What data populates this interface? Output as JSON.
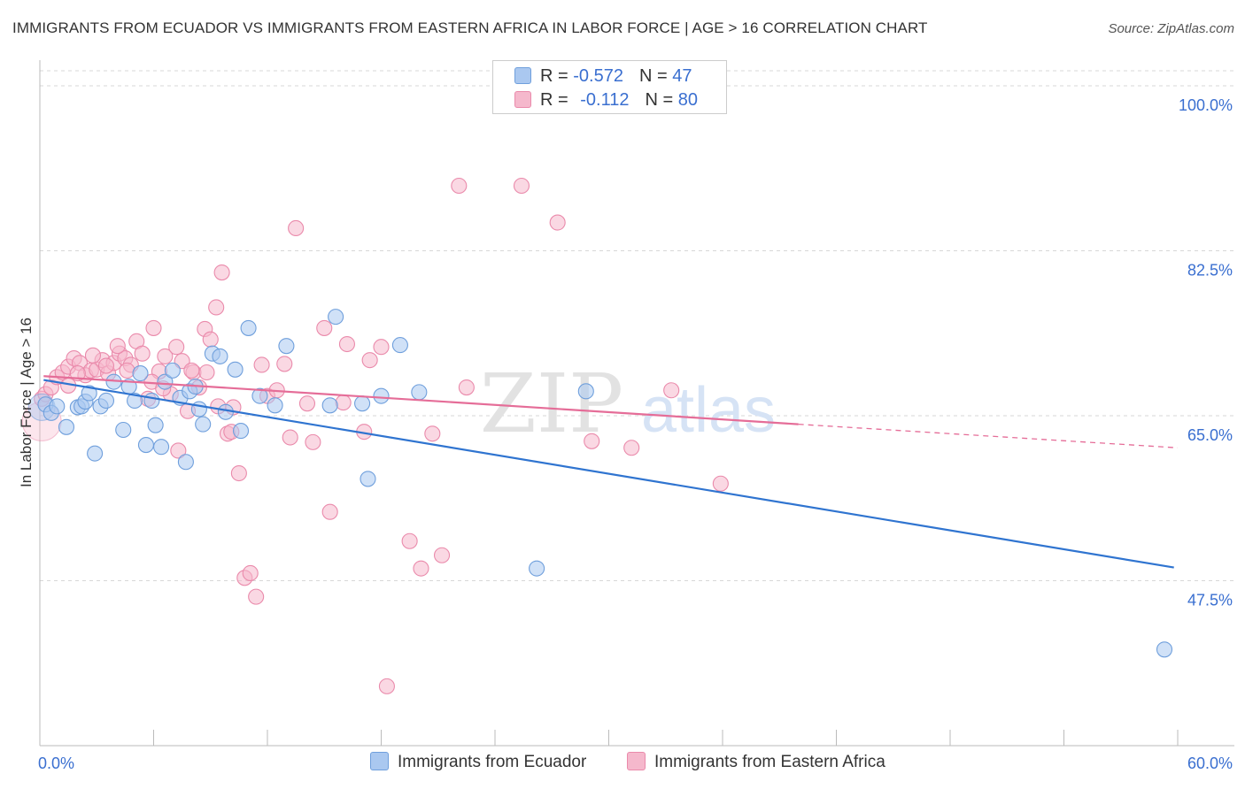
{
  "title": "IMMIGRANTS FROM ECUADOR VS IMMIGRANTS FROM EASTERN AFRICA IN LABOR FORCE | AGE > 16 CORRELATION CHART",
  "source": "Source: ZipAtlas.com",
  "watermark": {
    "zip": "ZIP",
    "atlas": "atlas"
  },
  "legend_top": {
    "rows": [
      {
        "r_label": "R = ",
        "r_value": "-0.572",
        "n_label": "N = ",
        "n_value": "47"
      },
      {
        "r_label": "R = ",
        "r_value": "-0.112",
        "n_label": "N = ",
        "n_value": "80"
      }
    ]
  },
  "legend_bottom": {
    "items": [
      {
        "label": "Immigrants from Ecuador"
      },
      {
        "label": "Immigrants from Eastern Africa"
      }
    ]
  },
  "colors": {
    "blue_fill": "#aac8f0",
    "blue_stroke": "#6f9fdc",
    "blue_line": "#2f74d0",
    "pink_fill": "#f5b8cc",
    "pink_stroke": "#ea8aab",
    "pink_line": "#e56d98",
    "tick_label": "#3a6fd0",
    "grid": "#d7d7d7"
  },
  "chart_data": {
    "type": "scatter",
    "title": "IMMIGRANTS FROM ECUADOR VS IMMIGRANTS FROM EASTERN AFRICA IN LABOR FORCE | AGE > 16 CORRELATION CHART",
    "xlabel": "",
    "ylabel": "In Labor Force | Age > 16",
    "xlim": [
      0,
      60
    ],
    "ylim": [
      30,
      101.6
    ],
    "x_tick_labels": [
      "0.0%",
      "60.0%"
    ],
    "y_ticks": [
      {
        "value": 100.0,
        "label": "100.0%"
      },
      {
        "value": 82.5,
        "label": "82.5%"
      },
      {
        "value": 65.0,
        "label": "65.0%"
      },
      {
        "value": 47.5,
        "label": "47.5%"
      }
    ],
    "series": [
      {
        "name": "Immigrants from Ecuador",
        "color": "blue",
        "trend": {
          "x": [
            0.2,
            59.8
          ],
          "y": [
            68.8,
            48.9
          ],
          "dashed_to": null
        },
        "points": [
          [
            0.3,
            66.2
          ],
          [
            0.6,
            65.3
          ],
          [
            0.9,
            66.0
          ],
          [
            1.4,
            63.8
          ],
          [
            2.0,
            65.9
          ],
          [
            2.2,
            66.0
          ],
          [
            2.4,
            66.5
          ],
          [
            2.6,
            67.4
          ],
          [
            2.9,
            61.0
          ],
          [
            3.2,
            66.0
          ],
          [
            3.5,
            66.6
          ],
          [
            3.9,
            68.6
          ],
          [
            4.4,
            63.5
          ],
          [
            4.7,
            68.1
          ],
          [
            5.0,
            66.6
          ],
          [
            5.3,
            69.5
          ],
          [
            5.6,
            61.9
          ],
          [
            5.9,
            66.6
          ],
          [
            6.1,
            64.0
          ],
          [
            6.4,
            61.7
          ],
          [
            6.6,
            68.6
          ],
          [
            7.0,
            69.8
          ],
          [
            7.4,
            66.9
          ],
          [
            7.7,
            60.1
          ],
          [
            7.9,
            67.6
          ],
          [
            8.2,
            68.1
          ],
          [
            8.4,
            65.7
          ],
          [
            8.6,
            64.1
          ],
          [
            9.1,
            71.6
          ],
          [
            9.5,
            71.3
          ],
          [
            9.8,
            65.4
          ],
          [
            10.3,
            69.9
          ],
          [
            10.6,
            63.4
          ],
          [
            11.0,
            74.3
          ],
          [
            11.6,
            67.1
          ],
          [
            12.4,
            66.1
          ],
          [
            13.0,
            72.4
          ],
          [
            15.3,
            66.1
          ],
          [
            15.6,
            75.5
          ],
          [
            17.0,
            66.3
          ],
          [
            17.3,
            58.3
          ],
          [
            18.0,
            67.1
          ],
          [
            19.0,
            72.5
          ],
          [
            20.0,
            67.5
          ],
          [
            26.2,
            48.8
          ],
          [
            28.8,
            67.6
          ],
          [
            59.3,
            40.2
          ]
        ]
      },
      {
        "name": "Immigrants from Eastern Africa",
        "color": "pink",
        "trend": {
          "x": [
            0.2,
            40.0
          ],
          "y": [
            69.2,
            64.1
          ],
          "dashed_to": [
            60.0,
            61.6
          ]
        },
        "points": [
          [
            0.1,
            66.8
          ],
          [
            0.3,
            67.3
          ],
          [
            0.6,
            68.0
          ],
          [
            0.9,
            69.1
          ],
          [
            1.2,
            69.6
          ],
          [
            1.5,
            70.2
          ],
          [
            1.8,
            71.1
          ],
          [
            2.1,
            70.6
          ],
          [
            2.4,
            69.3
          ],
          [
            2.7,
            69.8
          ],
          [
            3.0,
            69.9
          ],
          [
            3.3,
            70.9
          ],
          [
            3.6,
            69.5
          ],
          [
            3.9,
            70.6
          ],
          [
            4.2,
            71.6
          ],
          [
            4.5,
            71.1
          ],
          [
            4.8,
            70.4
          ],
          [
            5.1,
            72.9
          ],
          [
            5.4,
            71.6
          ],
          [
            5.7,
            66.8
          ],
          [
            6.0,
            74.3
          ],
          [
            6.3,
            69.7
          ],
          [
            6.6,
            71.3
          ],
          [
            6.9,
            67.3
          ],
          [
            7.2,
            72.3
          ],
          [
            7.5,
            70.8
          ],
          [
            7.8,
            65.5
          ],
          [
            8.1,
            69.6
          ],
          [
            8.4,
            68.0
          ],
          [
            8.7,
            74.2
          ],
          [
            9.0,
            73.1
          ],
          [
            9.3,
            76.5
          ],
          [
            9.6,
            80.2
          ],
          [
            9.9,
            63.1
          ],
          [
            10.2,
            65.9
          ],
          [
            10.5,
            58.9
          ],
          [
            10.8,
            47.8
          ],
          [
            11.1,
            48.3
          ],
          [
            11.4,
            45.8
          ],
          [
            11.7,
            70.4
          ],
          [
            12.0,
            67.1
          ],
          [
            12.9,
            70.5
          ],
          [
            13.2,
            62.7
          ],
          [
            13.5,
            84.9
          ],
          [
            14.1,
            66.3
          ],
          [
            14.4,
            62.2
          ],
          [
            15.0,
            74.3
          ],
          [
            15.3,
            54.8
          ],
          [
            16.2,
            72.6
          ],
          [
            17.1,
            63.3
          ],
          [
            17.4,
            70.9
          ],
          [
            18.0,
            72.3
          ],
          [
            19.5,
            51.7
          ],
          [
            20.1,
            48.8
          ],
          [
            21.2,
            50.2
          ],
          [
            22.1,
            89.4
          ],
          [
            22.5,
            68.0
          ],
          [
            25.4,
            89.4
          ],
          [
            27.3,
            85.5
          ],
          [
            29.1,
            62.3
          ],
          [
            31.2,
            61.6
          ],
          [
            33.3,
            67.7
          ],
          [
            35.9,
            57.8
          ],
          [
            1.5,
            68.2
          ],
          [
            2.0,
            69.5
          ],
          [
            2.8,
            71.4
          ],
          [
            3.5,
            70.3
          ],
          [
            4.1,
            72.4
          ],
          [
            4.6,
            69.8
          ],
          [
            5.9,
            68.6
          ],
          [
            6.5,
            67.9
          ],
          [
            7.3,
            61.3
          ],
          [
            8.0,
            69.8
          ],
          [
            8.8,
            69.6
          ],
          [
            9.4,
            66.0
          ],
          [
            10.1,
            63.3
          ],
          [
            12.5,
            67.7
          ],
          [
            16.0,
            66.4
          ],
          [
            18.3,
            36.3
          ],
          [
            20.7,
            63.1
          ]
        ]
      }
    ]
  }
}
